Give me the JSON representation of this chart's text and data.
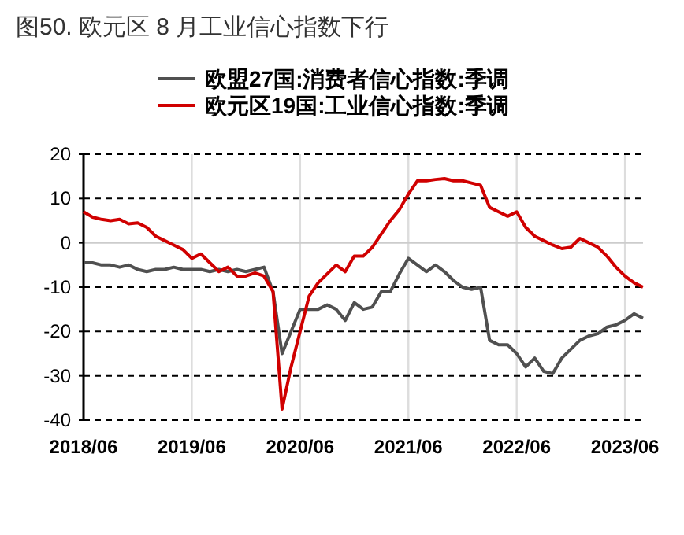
{
  "chart_data": {
    "type": "line",
    "title": "图50. 欧元区 8 月工业信心指数下行",
    "x": [
      "2018-06",
      "2018-07",
      "2018-08",
      "2018-09",
      "2018-10",
      "2018-11",
      "2018-12",
      "2019-01",
      "2019-02",
      "2019-03",
      "2019-04",
      "2019-05",
      "2019-06",
      "2019-07",
      "2019-08",
      "2019-09",
      "2019-10",
      "2019-11",
      "2019-12",
      "2020-01",
      "2020-02",
      "2020-03",
      "2020-04",
      "2020-05",
      "2020-06",
      "2020-07",
      "2020-08",
      "2020-09",
      "2020-10",
      "2020-11",
      "2020-12",
      "2021-01",
      "2021-02",
      "2021-03",
      "2021-04",
      "2021-05",
      "2021-06",
      "2021-07",
      "2021-08",
      "2021-09",
      "2021-10",
      "2021-11",
      "2021-12",
      "2022-01",
      "2022-02",
      "2022-03",
      "2022-04",
      "2022-05",
      "2022-06",
      "2022-07",
      "2022-08",
      "2022-09",
      "2022-10",
      "2022-11",
      "2022-12",
      "2023-01",
      "2023-02",
      "2023-03",
      "2023-04",
      "2023-05",
      "2023-06",
      "2023-07",
      "2023-08"
    ],
    "series": [
      {
        "name": "欧盟27国:消费者信心指数:季调",
        "color": "#505050",
        "values": [
          -4.5,
          -4.5,
          -5,
          -5,
          -5.5,
          -5,
          -6,
          -6.5,
          -6,
          -6,
          -5.5,
          -6,
          -6,
          -6,
          -6.5,
          -6,
          -6.5,
          -6,
          -6.5,
          -6,
          -5.5,
          -11,
          -25,
          -20,
          -15,
          -15,
          -15,
          -14,
          -15,
          -17.5,
          -13.5,
          -15,
          -14.5,
          -11,
          -11,
          -7,
          -3.5,
          -5,
          -6.5,
          -5,
          -6.5,
          -8.5,
          -10,
          -10.5,
          -10,
          -22,
          -23,
          -23,
          -25,
          -28,
          -26,
          -29,
          -29.5,
          -26,
          -24,
          -22,
          -21,
          -20.5,
          -19,
          -18.5,
          -17.5,
          -16,
          -17
        ]
      },
      {
        "name": "欧元区19国:工业信心指数:季调",
        "color": "#d00000",
        "values": [
          7,
          5.8,
          5.3,
          5,
          5.3,
          4.3,
          4.5,
          3.5,
          1.5,
          0.5,
          -0.5,
          -1.5,
          -3.5,
          -2.5,
          -4.5,
          -6.5,
          -5.5,
          -7.5,
          -7.5,
          -6.8,
          -7.5,
          -11,
          -37.5,
          -28,
          -20,
          -12,
          -9,
          -7,
          -5,
          -6.5,
          -3,
          -3,
          -1,
          2,
          5,
          7.5,
          11,
          14,
          14,
          14.3,
          14.5,
          14,
          14,
          13.5,
          13,
          8,
          7,
          6,
          7,
          3.5,
          1.5,
          0.5,
          -0.5,
          -1.3,
          -1,
          1,
          0,
          -1,
          -3,
          -5.5,
          -7.5,
          -9,
          -10
        ]
      }
    ],
    "xlim": [
      "2018-06",
      "2023-08"
    ],
    "xticks": [
      {
        "value": "2018-06",
        "label": "2018/06"
      },
      {
        "value": "2019-06",
        "label": "2019/06"
      },
      {
        "value": "2020-06",
        "label": "2020/06"
      },
      {
        "value": "2021-06",
        "label": "2021/06"
      },
      {
        "value": "2022-06",
        "label": "2022/06"
      },
      {
        "value": "2023-06",
        "label": "2023/06"
      }
    ],
    "ylim": [
      -40,
      20
    ],
    "yticks": [
      -40,
      -30,
      -20,
      -10,
      0,
      10,
      20
    ],
    "grid": true,
    "legend": "top",
    "marker": "none",
    "line_style": "solid"
  }
}
